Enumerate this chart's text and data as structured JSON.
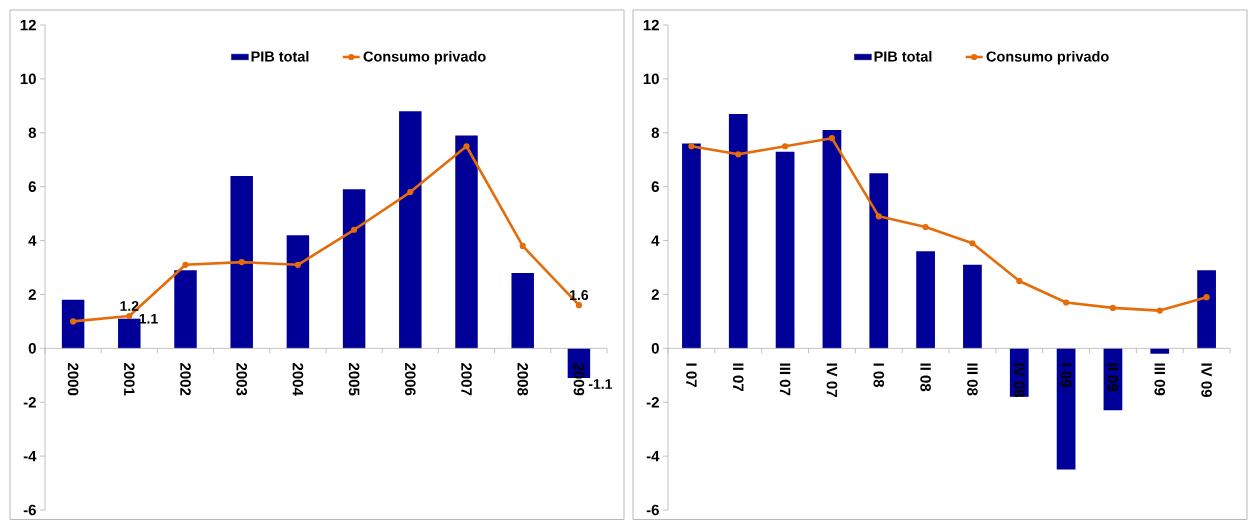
{
  "chart_data": [
    {
      "type": "bar",
      "categories": [
        "2000",
        "2001",
        "2002",
        "2003",
        "2004",
        "2005",
        "2006",
        "2007",
        "2008",
        "2009"
      ],
      "series": [
        {
          "name": "PIB total",
          "color": "#000099",
          "values": [
            1.8,
            1.1,
            2.9,
            6.4,
            4.2,
            5.9,
            8.8,
            7.9,
            2.8,
            -1.1
          ],
          "value_labels": [
            null,
            "1.1",
            null,
            null,
            null,
            null,
            null,
            null,
            null,
            "-1.1"
          ]
        },
        {
          "name": "Consumo privado",
          "type": "line",
          "color": "#e46c0a",
          "marker": "circle",
          "line_style": "solid",
          "values": [
            1.0,
            1.2,
            3.1,
            3.2,
            3.1,
            4.4,
            5.8,
            7.5,
            3.8,
            1.6
          ],
          "value_labels": [
            null,
            "1.2",
            null,
            null,
            null,
            null,
            null,
            null,
            null,
            "1.6"
          ]
        }
      ],
      "ylim": [
        -6,
        12
      ],
      "yticks": [
        -6,
        -4,
        -2,
        0,
        2,
        4,
        6,
        8,
        10,
        12
      ],
      "legend": "top"
    },
    {
      "type": "bar",
      "categories": [
        "I 07",
        "II 07",
        "III 07",
        "IV 07",
        "I 08",
        "II 08",
        "III 08",
        "IV 08",
        "I 09",
        "II 09",
        "III 09",
        "IV 09"
      ],
      "series": [
        {
          "name": "PIB total",
          "color": "#000099",
          "values": [
            7.6,
            8.7,
            7.3,
            8.1,
            6.5,
            3.6,
            3.1,
            -1.8,
            -4.5,
            -2.3,
            -0.2,
            2.9
          ]
        },
        {
          "name": "Consumo privado",
          "type": "line",
          "color": "#e46c0a",
          "marker": "circle",
          "line_style": "solid",
          "values": [
            7.5,
            7.2,
            7.5,
            7.8,
            4.9,
            4.5,
            3.9,
            2.5,
            1.7,
            1.5,
            1.4,
            1.9
          ]
        }
      ],
      "ylim": [
        -6,
        12
      ],
      "yticks": [
        -6,
        -4,
        -2,
        0,
        2,
        4,
        6,
        8,
        10,
        12
      ],
      "legend": "top"
    }
  ]
}
